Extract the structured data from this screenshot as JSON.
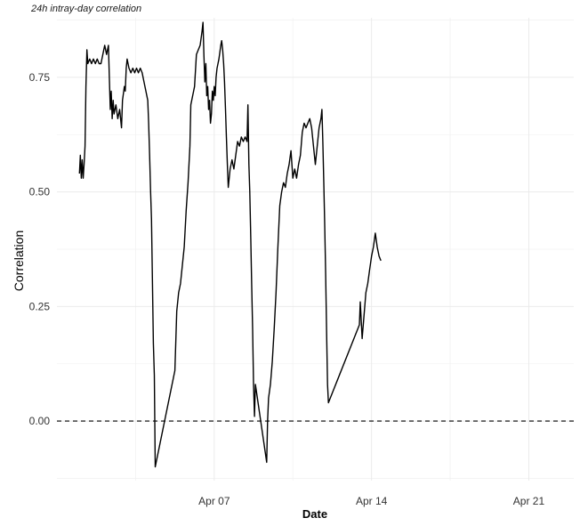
{
  "chart_data": {
    "type": "line",
    "title": "24h intray-day correlation",
    "xlabel": "Date",
    "ylabel": "Correlation",
    "x_start": "2025-03-31",
    "x_range": [
      "2025-03-31",
      "2025-04-23"
    ],
    "ylim": [
      -0.13,
      0.88
    ],
    "y_ticks": [
      0.0,
      0.25,
      0.5,
      0.75
    ],
    "y_tick_labels": [
      "0.00",
      "0.25",
      "0.50",
      "0.75"
    ],
    "x_ticks": [
      "2025-04-07",
      "2025-04-14",
      "2025-04-21"
    ],
    "x_tick_labels": [
      "Apr 07",
      "Apr 14",
      "Apr 21"
    ],
    "grid": true,
    "reference_line": {
      "y": 0.0,
      "style": "dashed"
    },
    "series": [
      {
        "points": [
          [
            "2025-04-01T00:00",
            0.54
          ],
          [
            "2025-04-01T01:00",
            0.58
          ],
          [
            "2025-04-01T02:00",
            0.53
          ],
          [
            "2025-04-01T03:00",
            0.57
          ],
          [
            "2025-04-01T04:00",
            0.53
          ],
          [
            "2025-04-01T05:00",
            0.56
          ],
          [
            "2025-04-01T06:00",
            0.6
          ],
          [
            "2025-04-01T07:00",
            0.73
          ],
          [
            "2025-04-01T08:00",
            0.81
          ],
          [
            "2025-04-01T09:00",
            0.78
          ],
          [
            "2025-04-01T11:00",
            0.79
          ],
          [
            "2025-04-01T13:00",
            0.78
          ],
          [
            "2025-04-01T15:00",
            0.79
          ],
          [
            "2025-04-01T17:00",
            0.78
          ],
          [
            "2025-04-01T19:00",
            0.79
          ],
          [
            "2025-04-01T21:00",
            0.78
          ],
          [
            "2025-04-01T23:00",
            0.78
          ],
          [
            "2025-04-02T01:00",
            0.8
          ],
          [
            "2025-04-02T03:00",
            0.82
          ],
          [
            "2025-04-02T05:00",
            0.8
          ],
          [
            "2025-04-02T07:00",
            0.82
          ],
          [
            "2025-04-02T08:00",
            0.75
          ],
          [
            "2025-04-02T09:00",
            0.68
          ],
          [
            "2025-04-02T10:00",
            0.72
          ],
          [
            "2025-04-02T11:00",
            0.66
          ],
          [
            "2025-04-02T12:00",
            0.7
          ],
          [
            "2025-04-02T13:00",
            0.67
          ],
          [
            "2025-04-02T15:00",
            0.69
          ],
          [
            "2025-04-02T17:00",
            0.66
          ],
          [
            "2025-04-02T19:00",
            0.68
          ],
          [
            "2025-04-02T21:00",
            0.64
          ],
          [
            "2025-04-02T22:00",
            0.7
          ],
          [
            "2025-04-03T00:00",
            0.73
          ],
          [
            "2025-04-03T01:00",
            0.72
          ],
          [
            "2025-04-03T02:00",
            0.77
          ],
          [
            "2025-04-03T03:00",
            0.79
          ],
          [
            "2025-04-03T05:00",
            0.77
          ],
          [
            "2025-04-03T07:00",
            0.76
          ],
          [
            "2025-04-03T09:00",
            0.77
          ],
          [
            "2025-04-03T11:00",
            0.76
          ],
          [
            "2025-04-03T13:00",
            0.77
          ],
          [
            "2025-04-03T15:00",
            0.76
          ],
          [
            "2025-04-03T17:00",
            0.77
          ],
          [
            "2025-04-03T19:00",
            0.76
          ],
          [
            "2025-04-03T21:00",
            0.74
          ],
          [
            "2025-04-03T23:00",
            0.72
          ],
          [
            "2025-04-04T01:00",
            0.7
          ],
          [
            "2025-04-04T02:00",
            0.65
          ],
          [
            "2025-04-04T03:00",
            0.58
          ],
          [
            "2025-04-04T04:00",
            0.5
          ],
          [
            "2025-04-04T05:00",
            0.44
          ],
          [
            "2025-04-04T06:00",
            0.3
          ],
          [
            "2025-04-04T07:00",
            0.17
          ],
          [
            "2025-04-04T08:00",
            0.1
          ],
          [
            "2025-04-04T09:00",
            -0.1
          ],
          [
            "2025-04-05T06:00",
            0.11
          ],
          [
            "2025-04-05T08:00",
            0.24
          ],
          [
            "2025-04-05T10:00",
            0.28
          ],
          [
            "2025-04-05T12:00",
            0.3
          ],
          [
            "2025-04-05T14:00",
            0.34
          ],
          [
            "2025-04-05T16:00",
            0.38
          ],
          [
            "2025-04-05T18:00",
            0.46
          ],
          [
            "2025-04-05T20:00",
            0.52
          ],
          [
            "2025-04-05T22:00",
            0.6
          ],
          [
            "2025-04-05T23:00",
            0.69
          ],
          [
            "2025-04-06T01:00",
            0.71
          ],
          [
            "2025-04-06T03:00",
            0.73
          ],
          [
            "2025-04-06T05:00",
            0.8
          ],
          [
            "2025-04-06T07:00",
            0.81
          ],
          [
            "2025-04-06T09:00",
            0.82
          ],
          [
            "2025-04-06T11:00",
            0.85
          ],
          [
            "2025-04-06T12:00",
            0.87
          ],
          [
            "2025-04-06T13:00",
            0.8
          ],
          [
            "2025-04-06T14:00",
            0.74
          ],
          [
            "2025-04-06T15:00",
            0.78
          ],
          [
            "2025-04-06T16:00",
            0.71
          ],
          [
            "2025-04-06T17:00",
            0.73
          ],
          [
            "2025-04-06T18:00",
            0.68
          ],
          [
            "2025-04-06T19:00",
            0.7
          ],
          [
            "2025-04-06T20:00",
            0.65
          ],
          [
            "2025-04-06T21:00",
            0.67
          ],
          [
            "2025-04-06T22:00",
            0.72
          ],
          [
            "2025-04-06T23:00",
            0.7
          ],
          [
            "2025-04-07T00:00",
            0.73
          ],
          [
            "2025-04-07T01:00",
            0.71
          ],
          [
            "2025-04-07T02:00",
            0.75
          ],
          [
            "2025-04-07T03:00",
            0.77
          ],
          [
            "2025-04-07T05:00",
            0.79
          ],
          [
            "2025-04-07T07:00",
            0.82
          ],
          [
            "2025-04-07T08:00",
            0.83
          ],
          [
            "2025-04-07T09:00",
            0.81
          ],
          [
            "2025-04-07T10:00",
            0.78
          ],
          [
            "2025-04-07T11:00",
            0.74
          ],
          [
            "2025-04-07T12:00",
            0.68
          ],
          [
            "2025-04-07T13:00",
            0.62
          ],
          [
            "2025-04-07T14:00",
            0.56
          ],
          [
            "2025-04-07T15:00",
            0.51
          ],
          [
            "2025-04-07T17:00",
            0.55
          ],
          [
            "2025-04-07T19:00",
            0.57
          ],
          [
            "2025-04-07T21:00",
            0.55
          ],
          [
            "2025-04-07T23:00",
            0.58
          ],
          [
            "2025-04-08T01:00",
            0.61
          ],
          [
            "2025-04-08T03:00",
            0.6
          ],
          [
            "2025-04-08T05:00",
            0.62
          ],
          [
            "2025-04-08T07:00",
            0.61
          ],
          [
            "2025-04-08T09:00",
            0.62
          ],
          [
            "2025-04-08T11:00",
            0.61
          ],
          [
            "2025-04-08T12:00",
            0.69
          ],
          [
            "2025-04-08T13:00",
            0.56
          ],
          [
            "2025-04-08T14:00",
            0.5
          ],
          [
            "2025-04-08T15:00",
            0.4
          ],
          [
            "2025-04-08T16:00",
            0.3
          ],
          [
            "2025-04-08T17:00",
            0.2
          ],
          [
            "2025-04-08T18:00",
            0.08
          ],
          [
            "2025-04-08T19:00",
            0.01
          ],
          [
            "2025-04-08T20:00",
            0.08
          ],
          [
            "2025-04-09T08:00",
            -0.09
          ],
          [
            "2025-04-09T09:00",
            0.0
          ],
          [
            "2025-04-09T10:00",
            0.05
          ],
          [
            "2025-04-09T12:00",
            0.08
          ],
          [
            "2025-04-09T14:00",
            0.13
          ],
          [
            "2025-04-09T16:00",
            0.2
          ],
          [
            "2025-04-09T18:00",
            0.28
          ],
          [
            "2025-04-09T20:00",
            0.38
          ],
          [
            "2025-04-09T22:00",
            0.47
          ],
          [
            "2025-04-10T00:00",
            0.5
          ],
          [
            "2025-04-10T02:00",
            0.52
          ],
          [
            "2025-04-10T04:00",
            0.51
          ],
          [
            "2025-04-10T06:00",
            0.54
          ],
          [
            "2025-04-10T08:00",
            0.56
          ],
          [
            "2025-04-10T10:00",
            0.59
          ],
          [
            "2025-04-10T12:00",
            0.53
          ],
          [
            "2025-04-10T14:00",
            0.55
          ],
          [
            "2025-04-10T16:00",
            0.53
          ],
          [
            "2025-04-10T18:00",
            0.56
          ],
          [
            "2025-04-10T20:00",
            0.58
          ],
          [
            "2025-04-10T22:00",
            0.63
          ],
          [
            "2025-04-11T00:00",
            0.65
          ],
          [
            "2025-04-11T02:00",
            0.64
          ],
          [
            "2025-04-11T04:00",
            0.65
          ],
          [
            "2025-04-11T06:00",
            0.66
          ],
          [
            "2025-04-11T08:00",
            0.64
          ],
          [
            "2025-04-11T10:00",
            0.6
          ],
          [
            "2025-04-11T12:00",
            0.56
          ],
          [
            "2025-04-11T14:00",
            0.6
          ],
          [
            "2025-04-11T16:00",
            0.64
          ],
          [
            "2025-04-11T18:00",
            0.66
          ],
          [
            "2025-04-11T19:00",
            0.68
          ],
          [
            "2025-04-11T20:00",
            0.61
          ],
          [
            "2025-04-11T21:00",
            0.52
          ],
          [
            "2025-04-11T22:00",
            0.43
          ],
          [
            "2025-04-11T23:00",
            0.32
          ],
          [
            "2025-04-12T00:00",
            0.2
          ],
          [
            "2025-04-12T01:00",
            0.08
          ],
          [
            "2025-04-12T02:00",
            0.04
          ],
          [
            "2025-04-13T11:00",
            0.21
          ],
          [
            "2025-04-13T12:00",
            0.26
          ],
          [
            "2025-04-13T14:00",
            0.18
          ],
          [
            "2025-04-13T16:00",
            0.23
          ],
          [
            "2025-04-13T18:00",
            0.28
          ],
          [
            "2025-04-13T20:00",
            0.3
          ],
          [
            "2025-04-13T22:00",
            0.33
          ],
          [
            "2025-04-14T00:00",
            0.36
          ],
          [
            "2025-04-14T02:00",
            0.38
          ],
          [
            "2025-04-14T04:00",
            0.41
          ],
          [
            "2025-04-14T06:00",
            0.38
          ],
          [
            "2025-04-14T08:00",
            0.36
          ],
          [
            "2025-04-14T10:00",
            0.35
          ]
        ]
      }
    ]
  }
}
